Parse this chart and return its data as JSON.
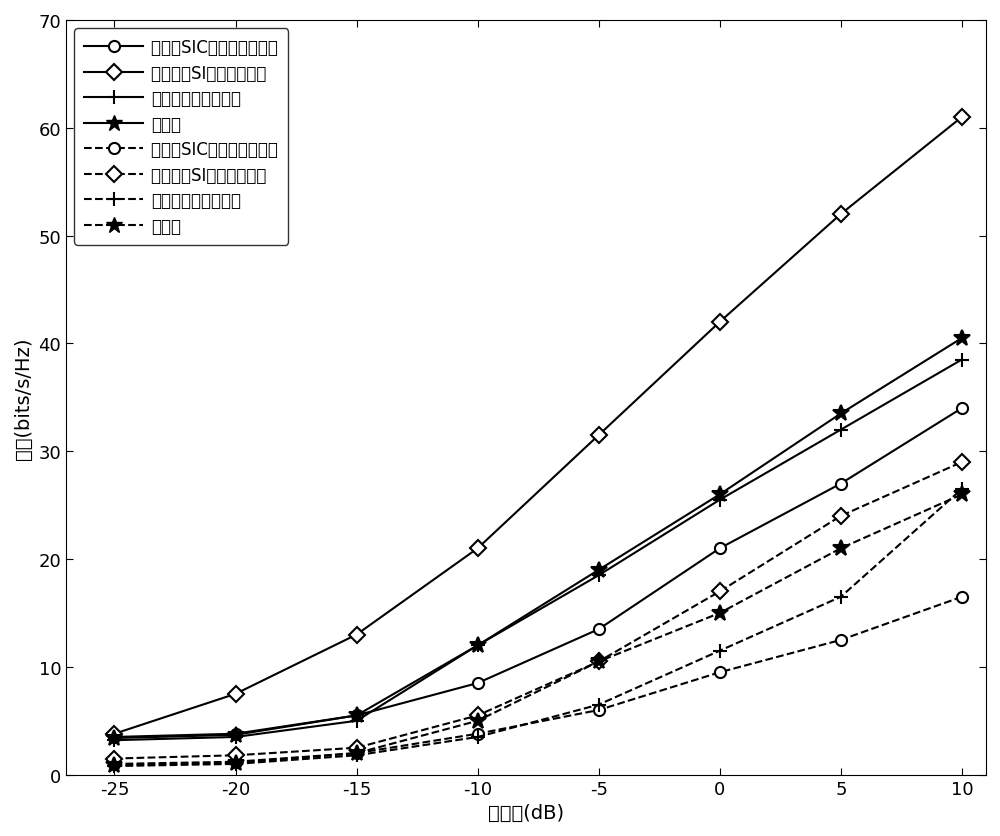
{
  "x": [
    -25,
    -20,
    -15,
    -10,
    -5,
    0,
    5,
    10
  ],
  "series": [
    {
      "values": [
        3.5,
        3.8,
        5.5,
        8.5,
        13.5,
        21.0,
        27.0,
        34.0
      ],
      "marker": "o",
      "linestyle": "-",
      "markerfacecolor": "white",
      "markersize": 8
    },
    {
      "values": [
        3.8,
        7.5,
        13.0,
        21.0,
        31.5,
        42.0,
        52.0,
        61.0
      ],
      "marker": "D",
      "linestyle": "-",
      "markerfacecolor": "white",
      "markersize": 8
    },
    {
      "values": [
        3.2,
        3.5,
        5.0,
        12.0,
        18.5,
        25.5,
        32.0,
        38.5
      ],
      "marker": "+",
      "linestyle": "-",
      "markerfacecolor": "black",
      "markersize": 10
    },
    {
      "values": [
        3.4,
        3.7,
        5.5,
        12.0,
        19.0,
        26.0,
        33.5,
        40.5
      ],
      "marker": "*",
      "linestyle": "-",
      "markerfacecolor": "black",
      "markersize": 12
    },
    {
      "values": [
        1.0,
        1.2,
        2.0,
        3.8,
        6.0,
        9.5,
        12.5,
        16.5
      ],
      "marker": "o",
      "linestyle": "--",
      "markerfacecolor": "white",
      "markersize": 8
    },
    {
      "values": [
        1.5,
        1.8,
        2.5,
        5.5,
        10.5,
        17.0,
        24.0,
        29.0
      ],
      "marker": "D",
      "linestyle": "--",
      "markerfacecolor": "white",
      "markersize": 8
    },
    {
      "values": [
        0.8,
        1.0,
        1.8,
        3.5,
        6.5,
        11.5,
        16.5,
        26.5
      ],
      "marker": "+",
      "linestyle": "--",
      "markerfacecolor": "black",
      "markersize": 10
    },
    {
      "values": [
        0.9,
        1.1,
        2.0,
        5.0,
        10.5,
        15.0,
        21.0,
        26.0
      ],
      "marker": "*",
      "linestyle": "--",
      "markerfacecolor": "black",
      "markersize": 12
    }
  ],
  "xlim": [
    -27,
    11
  ],
  "ylim": [
    0,
    70
  ],
  "yticks": [
    0,
    10,
    20,
    30,
    40,
    50,
    60,
    70
  ],
  "xticks": [
    -25,
    -20,
    -15,
    -10,
    -5,
    0,
    5,
    10
  ]
}
